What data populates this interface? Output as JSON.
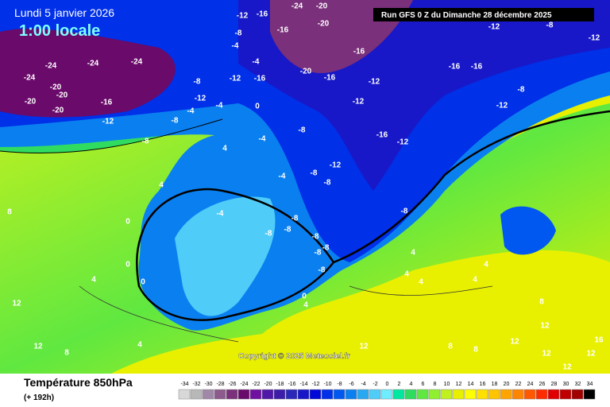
{
  "header": {
    "date": "Lundi 5 janvier 2026",
    "time": "1:00 locale",
    "run": "Run GFS 0 Z du Dimanche 28 décembre 2025"
  },
  "copyright": "Copyright © 2025 Meteociel.fr",
  "footer": {
    "title": "Température 850hPa",
    "lead": "(+ 192h)"
  },
  "contour_labels": [
    -12,
    -16,
    -24,
    -20,
    -20,
    -16,
    -8,
    -4,
    -4,
    -12,
    -16,
    -20,
    -16,
    -16,
    -12,
    -12,
    -16,
    -16,
    -8,
    -12,
    -12,
    -8,
    -12,
    -24,
    -24,
    -24,
    -24,
    -20,
    -20,
    -20,
    -20,
    -16,
    -12,
    -8,
    -8,
    -8,
    -4,
    -12,
    -4,
    0,
    -4,
    -8,
    -4,
    -8,
    -12,
    -8,
    -16,
    -12,
    -8,
    -8,
    -8,
    -8,
    -8,
    -8,
    -8,
    -8,
    -4,
    4,
    4,
    0,
    0,
    0,
    4,
    12,
    8,
    4,
    0,
    4,
    4,
    4,
    4,
    4,
    4,
    8,
    12,
    12,
    12,
    12,
    16,
    12,
    8,
    8,
    8,
    12,
    12
  ],
  "scale": {
    "values": [
      -34,
      -32,
      -30,
      -28,
      -26,
      -24,
      -22,
      -20,
      -18,
      -16,
      -14,
      -12,
      -10,
      -8,
      -6,
      -4,
      -2,
      0,
      2,
      4,
      6,
      8,
      10,
      12,
      14,
      16,
      18,
      20,
      22,
      24,
      26,
      28,
      30,
      32,
      34
    ],
    "colors": [
      "#d8d8d8",
      "#b8b8b8",
      "#a088a8",
      "#8c5a8c",
      "#7a307a",
      "#6a0a6a",
      "#7010a0",
      "#5018a8",
      "#3c1ca8",
      "#2a28b8",
      "#1818c8",
      "#0008d8",
      "#0030e8",
      "#0058f0",
      "#0a80f0",
      "#28a8f0",
      "#50ccf8",
      "#70ecff",
      "#00e8a0",
      "#30dc60",
      "#60e840",
      "#90f030",
      "#c0f020",
      "#e8f000",
      "#ffff00",
      "#ffe000",
      "#ffc400",
      "#ffa400",
      "#ff8400",
      "#ff5800",
      "#ff2c00",
      "#e00000",
      "#c00000",
      "#a00000",
      "#000000"
    ]
  }
}
